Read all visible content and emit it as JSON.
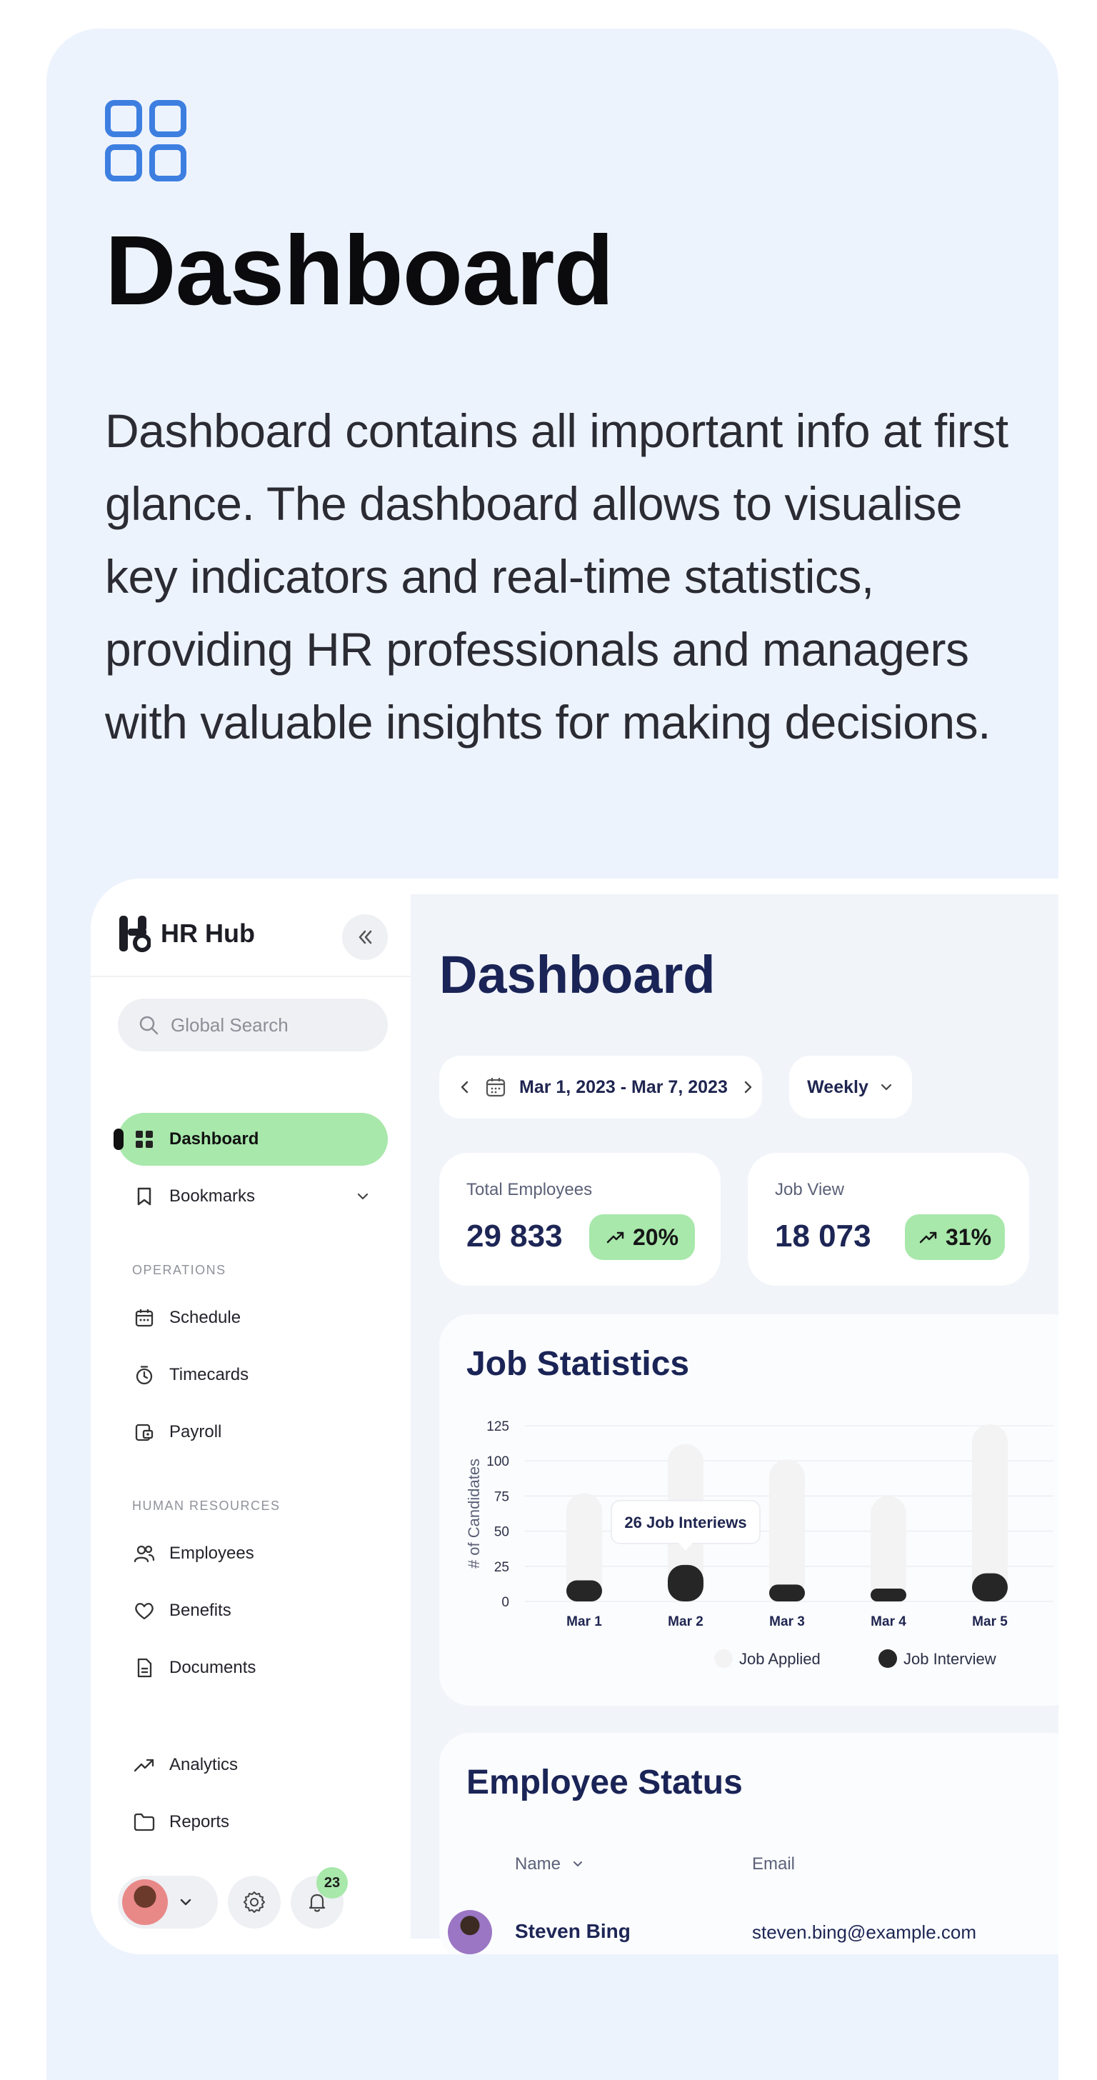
{
  "hero": {
    "title": "Dashboard",
    "description": "Dashboard contains all important info at first glance. The dashboard allows  to visualise key indicators and real-time statistics, providing HR professionals and managers with valuable insights for making decisions."
  },
  "colors": {
    "accent_green": "#a8e8ab",
    "navy": "#1a2456",
    "panel_bg": "#edf3fd",
    "icon_blue": "#3d7fe0"
  },
  "sidebar": {
    "brand": "HR Hub",
    "search_placeholder": "Global Search",
    "items": [
      {
        "label": "Dashboard",
        "icon": "grid-icon",
        "active": true
      },
      {
        "label": "Bookmarks",
        "icon": "bookmark-icon"
      }
    ],
    "section_operations": "OPERATIONS",
    "operations": [
      {
        "label": "Schedule",
        "icon": "calendar-icon"
      },
      {
        "label": "Timecards",
        "icon": "stopwatch-icon"
      },
      {
        "label": "Payroll",
        "icon": "payroll-icon"
      }
    ],
    "section_hr": "HUMAN RESOURCES",
    "hr": [
      {
        "label": "Employees",
        "icon": "users-icon"
      },
      {
        "label": "Benefits",
        "icon": "heart-icon"
      },
      {
        "label": "Documents",
        "icon": "document-icon"
      }
    ],
    "extra": [
      {
        "label": "Analytics",
        "icon": "trend-icon"
      },
      {
        "label": "Reports",
        "icon": "folder-icon"
      }
    ],
    "notification_count": "23"
  },
  "main": {
    "title": "Dashboard",
    "date_range": "Mar 1, 2023 - Mar 7, 2023",
    "period": "Weekly",
    "stats": [
      {
        "label": "Total Employees",
        "value": "29 833",
        "change": "20%"
      },
      {
        "label": "Job View",
        "value": "18 073",
        "change": "31%"
      }
    ],
    "job_statistics": {
      "title": "Job Statistics",
      "tooltip": "26 Job Interiews"
    },
    "employee_status": {
      "title": "Employee Status",
      "col_name": "Name",
      "col_email": "Email",
      "rows": [
        {
          "name": "Steven Bing",
          "email": "steven.bing@example.com"
        }
      ]
    }
  },
  "chart_data": {
    "type": "bar",
    "title": "Job Statistics",
    "ylabel": "# of Candidates",
    "xlabel": "",
    "categories": [
      "Mar 1",
      "Mar 2",
      "Mar 3",
      "Mar 4",
      "Mar 5"
    ],
    "yticks": [
      0,
      25,
      50,
      75,
      100,
      125
    ],
    "ylim": [
      0,
      125
    ],
    "grid": true,
    "legend": "bottom-right",
    "series": [
      {
        "name": "Job Applied",
        "values": [
          77,
          112,
          101,
          75,
          126
        ],
        "color": "#f3f3f4"
      },
      {
        "name": "Job Interview",
        "values": [
          15,
          26,
          12,
          8,
          20
        ],
        "color": "#262626"
      }
    ],
    "annotation": "26 Job Interiews"
  }
}
